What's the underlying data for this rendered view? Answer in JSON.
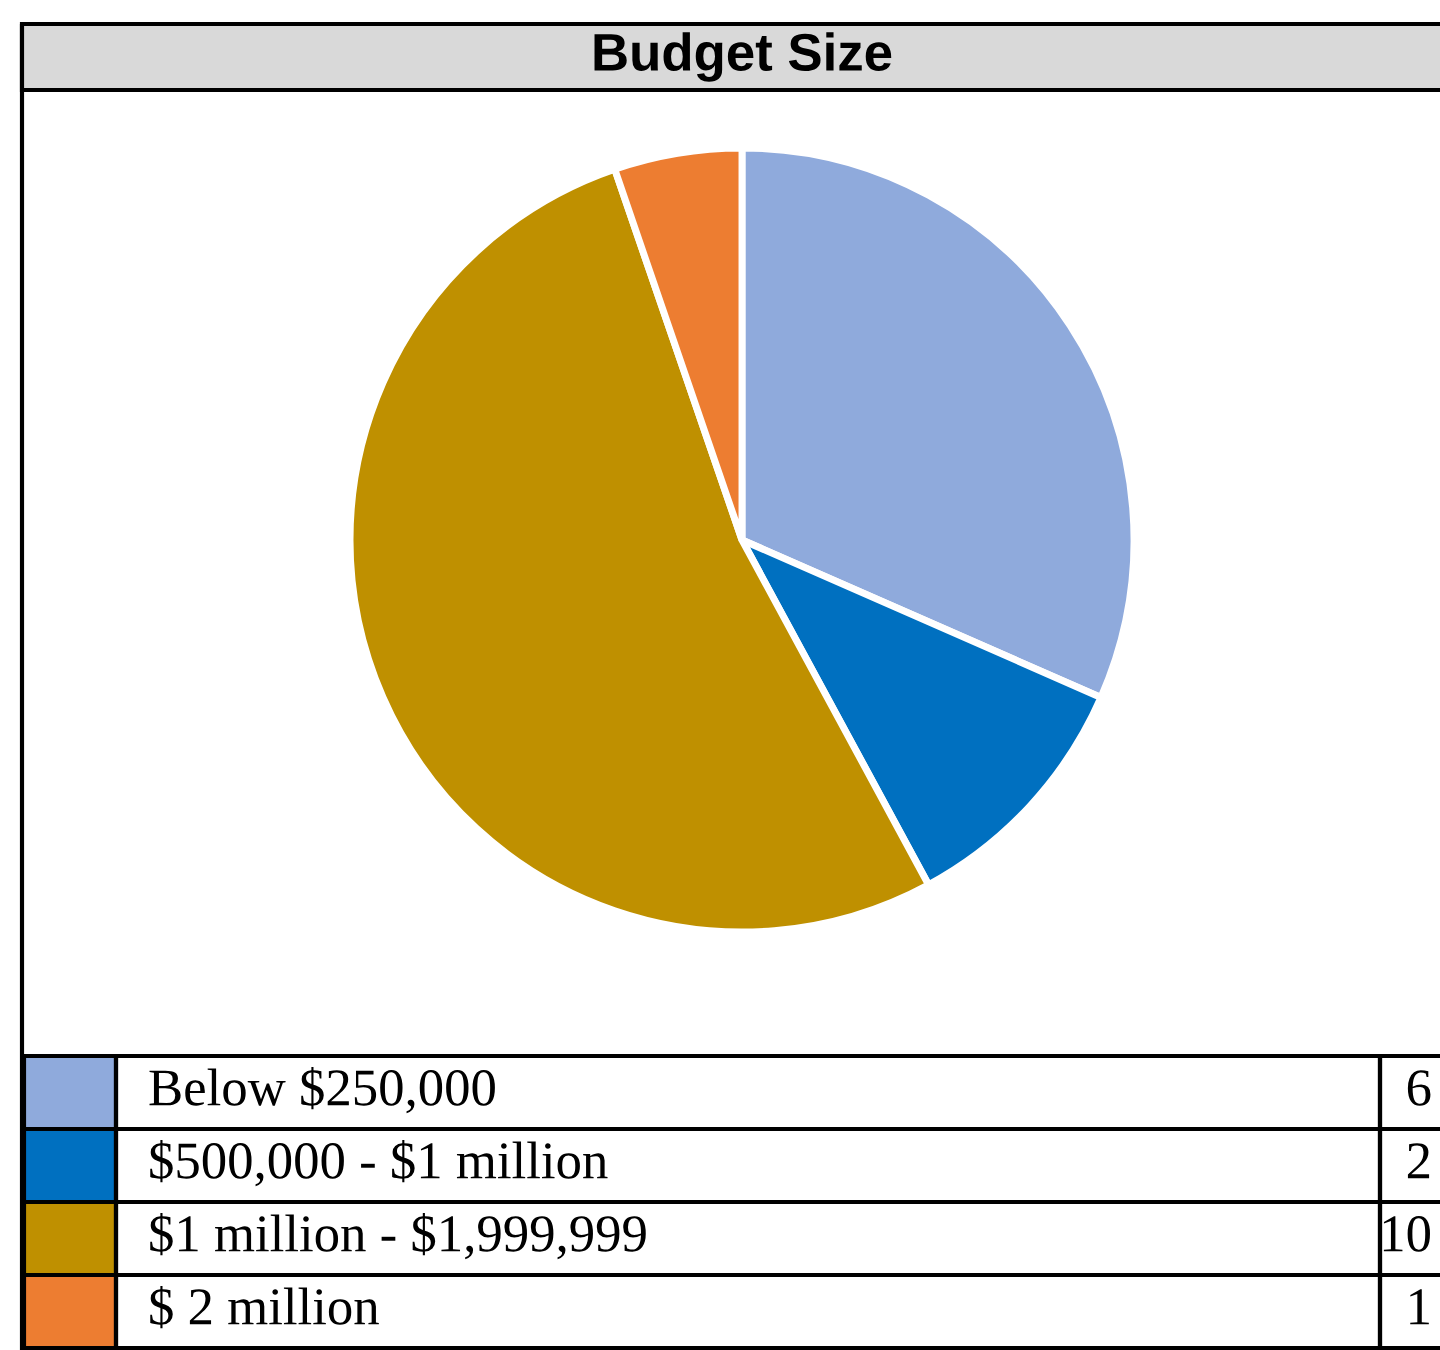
{
  "chart_data": {
    "type": "pie",
    "title": "Budget Size",
    "categories": [
      "Below $250,000",
      "$500,000 - $1 million",
      "$1 million - $1,999,999",
      "$ 2 million"
    ],
    "values": [
      6,
      2,
      10,
      1
    ],
    "colors": [
      "#8faadc",
      "#0070c0",
      "#bf9000",
      "#ed7d31"
    ],
    "data_labels": true,
    "legend": "bottom"
  }
}
